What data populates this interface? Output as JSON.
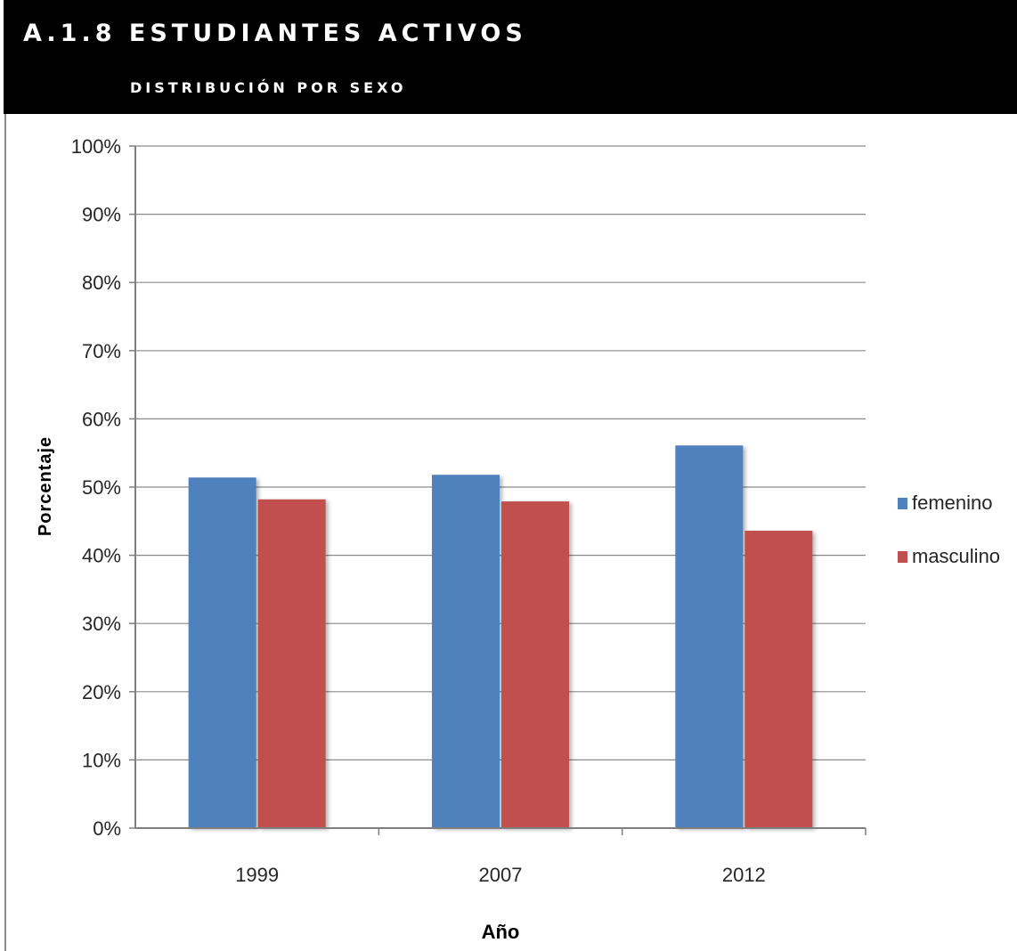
{
  "header": {
    "title": "A.1.8 ESTUDIANTES ACTIVOS",
    "subtitle": "distribución por sexo"
  },
  "chart_data": {
    "type": "bar",
    "categories": [
      "1999",
      "2007",
      "2012"
    ],
    "series": [
      {
        "name": "femenino",
        "values": [
          51.4,
          51.8,
          56.1
        ],
        "color": "#4f81bd"
      },
      {
        "name": "masculino",
        "values": [
          48.2,
          47.9,
          43.6
        ],
        "color": "#c0504d"
      }
    ],
    "xlabel": "Año",
    "ylabel": "Porcentaje",
    "ylim": [
      0,
      100
    ],
    "yticks": [
      "0%",
      "10%",
      "20%",
      "30%",
      "40%",
      "50%",
      "60%",
      "70%",
      "80%",
      "90%",
      "100%"
    ],
    "grid": true,
    "legend_position": "right"
  }
}
